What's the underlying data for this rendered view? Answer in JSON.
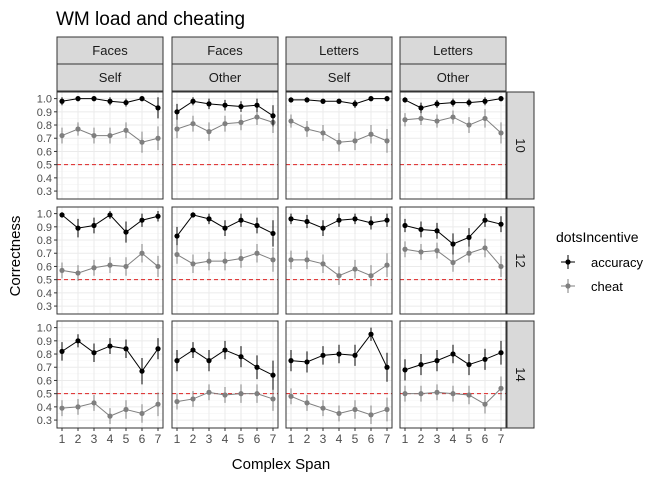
{
  "chart_data": {
    "type": "line",
    "title": "WM load and cheating",
    "xlabel": "Complex Span",
    "ylabel": "Correctness",
    "x": [
      1,
      2,
      3,
      4,
      5,
      6,
      7
    ],
    "ylim": [
      0.24,
      1.05
    ],
    "yticks": [
      "0.3",
      "0.4",
      "0.5",
      "0.6",
      "0.7",
      "0.8",
      "0.9",
      "1.0"
    ],
    "reference_line": 0.5,
    "legend": {
      "title": "dotsIncentive",
      "position": "right",
      "entries": [
        "accuracy",
        "cheat"
      ]
    },
    "colors": {
      "accuracy": "#000000",
      "cheat": "#7f7f7f",
      "reference": "#dd2222",
      "strip": "#d9d9d9",
      "grid": "#ebebeb"
    },
    "columns": [
      {
        "top": "Faces",
        "bottom": "Self"
      },
      {
        "top": "Faces",
        "bottom": "Other"
      },
      {
        "top": "Letters",
        "bottom": "Self"
      },
      {
        "top": "Letters",
        "bottom": "Other"
      }
    ],
    "rows": [
      "10",
      "12",
      "14"
    ],
    "panels": [
      [
        {
          "accuracy": [
            0.98,
            1.0,
            1.0,
            0.98,
            0.97,
            1.0,
            0.93
          ],
          "accuracy_err": [
            0.03,
            0.02,
            0.02,
            0.03,
            0.03,
            0.02,
            0.08
          ],
          "cheat": [
            0.72,
            0.77,
            0.72,
            0.72,
            0.76,
            0.67,
            0.7
          ],
          "cheat_err": [
            0.06,
            0.05,
            0.06,
            0.06,
            0.06,
            0.08,
            0.09
          ]
        },
        {
          "accuracy": [
            0.9,
            0.98,
            0.96,
            0.95,
            0.94,
            0.95,
            0.87
          ],
          "accuracy_err": [
            0.06,
            0.03,
            0.04,
            0.04,
            0.04,
            0.05,
            0.08
          ],
          "cheat": [
            0.77,
            0.81,
            0.75,
            0.81,
            0.82,
            0.86,
            0.82
          ],
          "cheat_err": [
            0.07,
            0.06,
            0.07,
            0.06,
            0.06,
            0.06,
            0.08
          ]
        },
        {
          "accuracy": [
            0.99,
            0.99,
            0.98,
            0.98,
            0.96,
            1.0,
            1.0
          ],
          "accuracy_err": [
            0.02,
            0.02,
            0.02,
            0.02,
            0.03,
            0.02,
            0.02
          ],
          "cheat": [
            0.83,
            0.77,
            0.74,
            0.67,
            0.68,
            0.73,
            0.68
          ],
          "cheat_err": [
            0.05,
            0.06,
            0.06,
            0.07,
            0.07,
            0.07,
            0.09
          ]
        },
        {
          "accuracy": [
            0.99,
            0.93,
            0.96,
            0.97,
            0.97,
            0.98,
            1.0
          ],
          "accuracy_err": [
            0.02,
            0.04,
            0.03,
            0.03,
            0.03,
            0.03,
            0.02
          ],
          "cheat": [
            0.84,
            0.85,
            0.83,
            0.86,
            0.8,
            0.85,
            0.74
          ],
          "cheat_err": [
            0.05,
            0.05,
            0.05,
            0.05,
            0.06,
            0.07,
            0.08
          ]
        }
      ],
      [
        {
          "accuracy": [
            0.99,
            0.89,
            0.91,
            0.99,
            0.86,
            0.95,
            0.98
          ],
          "accuracy_err": [
            0.02,
            0.07,
            0.06,
            0.03,
            0.08,
            0.05,
            0.04
          ],
          "cheat": [
            0.57,
            0.55,
            0.59,
            0.61,
            0.6,
            0.7,
            0.6
          ],
          "cheat_err": [
            0.06,
            0.06,
            0.06,
            0.06,
            0.07,
            0.07,
            0.08
          ]
        },
        {
          "accuracy": [
            0.83,
            0.99,
            0.96,
            0.89,
            0.95,
            0.91,
            0.85
          ],
          "accuracy_err": [
            0.07,
            0.02,
            0.04,
            0.06,
            0.05,
            0.06,
            0.1
          ],
          "cheat": [
            0.69,
            0.62,
            0.64,
            0.64,
            0.66,
            0.7,
            0.65
          ],
          "cheat_err": [
            0.07,
            0.07,
            0.07,
            0.07,
            0.07,
            0.07,
            0.09
          ]
        },
        {
          "accuracy": [
            0.96,
            0.94,
            0.89,
            0.95,
            0.96,
            0.93,
            0.95
          ],
          "accuracy_err": [
            0.04,
            0.05,
            0.06,
            0.05,
            0.04,
            0.05,
            0.05
          ],
          "cheat": [
            0.65,
            0.65,
            0.62,
            0.53,
            0.58,
            0.53,
            0.61
          ],
          "cheat_err": [
            0.07,
            0.07,
            0.07,
            0.07,
            0.07,
            0.08,
            0.09
          ]
        },
        {
          "accuracy": [
            0.91,
            0.88,
            0.87,
            0.77,
            0.82,
            0.95,
            0.92
          ],
          "accuracy_err": [
            0.05,
            0.06,
            0.06,
            0.08,
            0.07,
            0.05,
            0.06
          ],
          "cheat": [
            0.73,
            0.71,
            0.72,
            0.63,
            0.7,
            0.74,
            0.6
          ],
          "cheat_err": [
            0.06,
            0.06,
            0.06,
            0.07,
            0.07,
            0.07,
            0.08
          ]
        }
      ],
      [
        {
          "accuracy": [
            0.82,
            0.9,
            0.81,
            0.86,
            0.84,
            0.67,
            0.84
          ],
          "accuracy_err": [
            0.07,
            0.05,
            0.07,
            0.06,
            0.07,
            0.1,
            0.08
          ],
          "cheat": [
            0.39,
            0.4,
            0.43,
            0.33,
            0.38,
            0.35,
            0.42
          ],
          "cheat_err": [
            0.06,
            0.06,
            0.06,
            0.06,
            0.07,
            0.07,
            0.09
          ]
        },
        {
          "accuracy": [
            0.75,
            0.83,
            0.75,
            0.83,
            0.78,
            0.7,
            0.64
          ],
          "accuracy_err": [
            0.08,
            0.06,
            0.08,
            0.07,
            0.08,
            0.09,
            0.11
          ],
          "cheat": [
            0.44,
            0.46,
            0.51,
            0.49,
            0.5,
            0.5,
            0.46
          ],
          "cheat_err": [
            0.06,
            0.06,
            0.06,
            0.06,
            0.07,
            0.07,
            0.09
          ]
        },
        {
          "accuracy": [
            0.75,
            0.74,
            0.79,
            0.8,
            0.79,
            0.95,
            0.7
          ],
          "accuracy_err": [
            0.08,
            0.08,
            0.07,
            0.07,
            0.08,
            0.05,
            0.11
          ],
          "cheat": [
            0.48,
            0.43,
            0.39,
            0.35,
            0.38,
            0.34,
            0.38
          ],
          "cheat_err": [
            0.06,
            0.06,
            0.06,
            0.06,
            0.07,
            0.07,
            0.09
          ]
        },
        {
          "accuracy": [
            0.68,
            0.72,
            0.75,
            0.8,
            0.72,
            0.76,
            0.81
          ],
          "accuracy_err": [
            0.08,
            0.08,
            0.08,
            0.07,
            0.08,
            0.08,
            0.09
          ],
          "cheat": [
            0.5,
            0.5,
            0.51,
            0.5,
            0.49,
            0.42,
            0.54
          ],
          "cheat_err": [
            0.06,
            0.06,
            0.06,
            0.06,
            0.07,
            0.07,
            0.09
          ]
        }
      ]
    ]
  }
}
